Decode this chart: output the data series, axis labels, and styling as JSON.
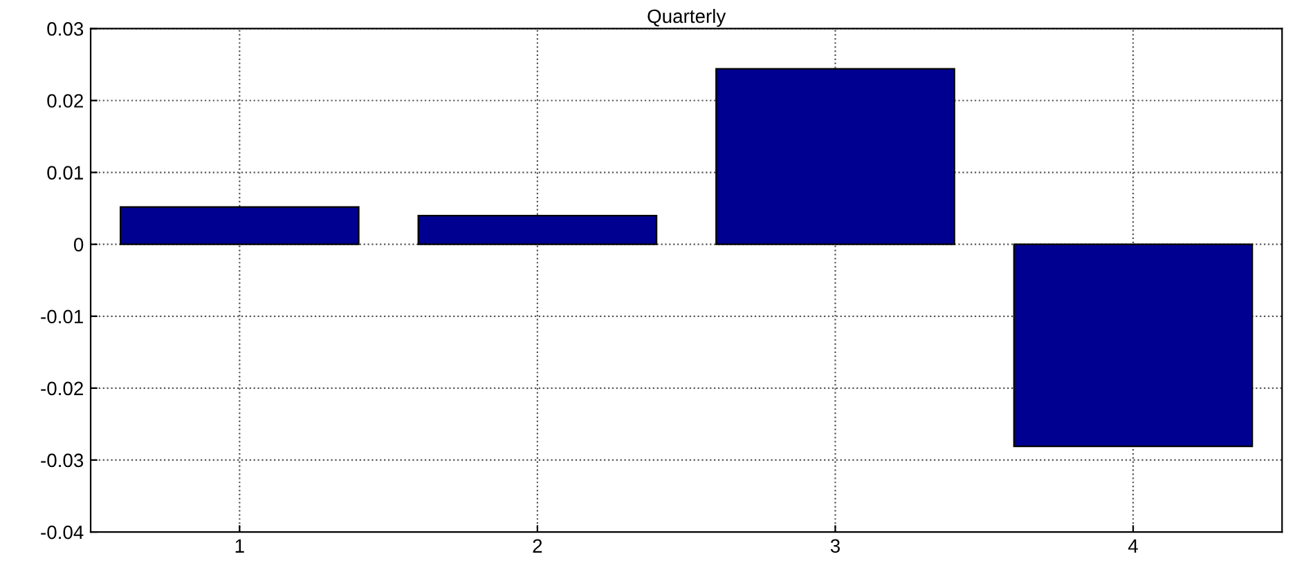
{
  "chart_data": {
    "type": "bar",
    "title": "Quarterly",
    "categories": [
      "1",
      "2",
      "3",
      "4"
    ],
    "values": [
      0.0052,
      0.004,
      0.0244,
      -0.0281
    ],
    "color": "#000090",
    "ylim": [
      -0.04,
      0.03
    ],
    "yticks": [
      {
        "value": -0.04,
        "label": "-0.04"
      },
      {
        "value": -0.03,
        "label": "-0.03"
      },
      {
        "value": -0.02,
        "label": "-0.02"
      },
      {
        "value": -0.01,
        "label": "-0.01"
      },
      0,
      0.01,
      0.02,
      0.03
    ],
    "grid": true
  }
}
